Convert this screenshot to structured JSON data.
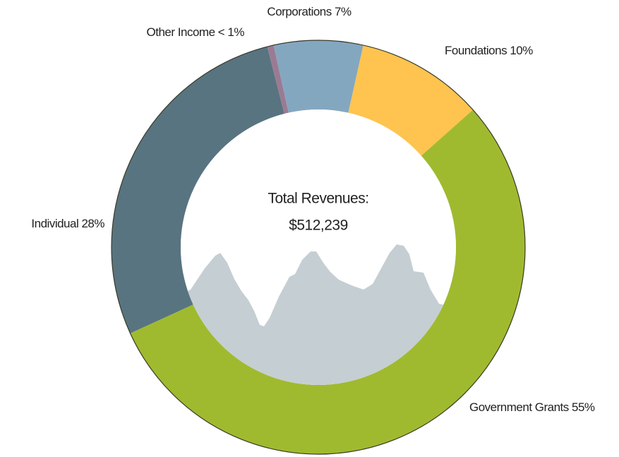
{
  "chart_data": {
    "type": "donut",
    "center_text": [
      "Total Revenues:",
      "$512,239"
    ],
    "categories": [
      "Corporations",
      "Foundations",
      "Government Grants",
      "Individual",
      "Other Income"
    ],
    "values": [
      7,
      10,
      55,
      28,
      0.5
    ],
    "value_labels": [
      "7%",
      "10%",
      "55%",
      "28%",
      "< 1%"
    ],
    "colors": [
      "#84a7c0",
      "#fec44f",
      "#a0ba2f",
      "#587480",
      "#9b7b93"
    ]
  }
}
